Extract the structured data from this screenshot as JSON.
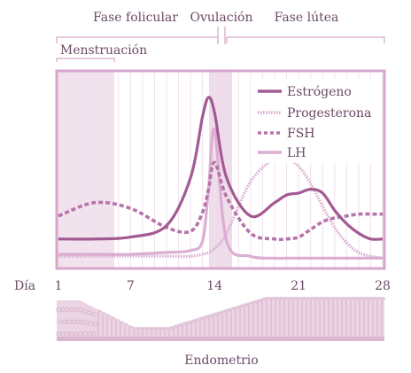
{
  "phases": {
    "follicular": "Fase folicular",
    "ovulation": "Ovulación",
    "luteal": "Fase lútea",
    "menstruation": "Menstruación"
  },
  "legend": [
    {
      "key": "estrogen",
      "label": "Estrógeno",
      "color": "#a35a93",
      "style": "solid"
    },
    {
      "key": "progesterone",
      "label": "Progesterona",
      "color": "#d8a8cd",
      "style": "dotted"
    },
    {
      "key": "fsh",
      "label": "FSH",
      "color": "#b774a8",
      "style": "dashed"
    },
    {
      "key": "lh",
      "label": "LH",
      "color": "#dbaed2",
      "style": "solid"
    }
  ],
  "axis": {
    "label": "Día",
    "ticks": [
      1,
      7,
      14,
      21,
      28
    ]
  },
  "endometrium_label": "Endometrio",
  "colors": {
    "frame": "#d7a6cc",
    "menstruation_band": "#f1e2ee",
    "ovulation_band": "#efdcea",
    "text": "#6b4a66",
    "endometrium": "#d9b7cf"
  },
  "chart_data": {
    "type": "line",
    "x": [
      1,
      4,
      7,
      10,
      12,
      13,
      13.5,
      14,
      15,
      17,
      19,
      20,
      21,
      22,
      23,
      24,
      25,
      26,
      27,
      28
    ],
    "series": [
      {
        "name": "Estrógeno",
        "values": [
          0.14,
          0.14,
          0.15,
          0.21,
          0.46,
          0.78,
          0.88,
          0.8,
          0.46,
          0.26,
          0.33,
          0.37,
          0.38,
          0.4,
          0.38,
          0.29,
          0.22,
          0.17,
          0.14,
          0.14
        ]
      },
      {
        "name": "Progesterona",
        "values": [
          0.05,
          0.05,
          0.05,
          0.05,
          0.05,
          0.06,
          0.07,
          0.09,
          0.17,
          0.44,
          0.56,
          0.56,
          0.52,
          0.43,
          0.31,
          0.2,
          0.12,
          0.07,
          0.05,
          0.04
        ]
      },
      {
        "name": "FSH",
        "values": [
          0.26,
          0.33,
          0.3,
          0.2,
          0.18,
          0.28,
          0.4,
          0.54,
          0.36,
          0.17,
          0.14,
          0.14,
          0.15,
          0.19,
          0.23,
          0.25,
          0.26,
          0.27,
          0.27,
          0.27
        ]
      },
      {
        "name": "LH",
        "values": [
          0.06,
          0.06,
          0.06,
          0.07,
          0.08,
          0.13,
          0.4,
          0.71,
          0.13,
          0.05,
          0.04,
          0.04,
          0.04,
          0.04,
          0.04,
          0.04,
          0.04,
          0.04,
          0.04,
          0.04
        ]
      }
    ],
    "xlim": [
      1,
      28
    ],
    "ylim": [
      0,
      1
    ]
  }
}
